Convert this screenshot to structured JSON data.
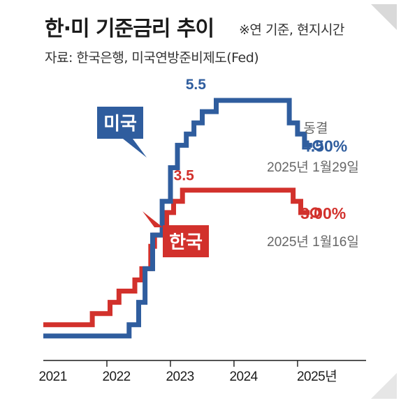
{
  "header": {
    "title": "한·미 기준금리 추이",
    "note": "※연 기준, 현지시간",
    "source": "자료: 한국은행, 미국연방준비제도(Fed)"
  },
  "colors": {
    "us": "#2f5d9e",
    "korea": "#d2312c",
    "axis": "#1b1b1b",
    "date": "#666666"
  },
  "chart_data": {
    "type": "line",
    "step": true,
    "x_unit": "year",
    "xlim": [
      2020.85,
      2025.95
    ],
    "ylim": [
      0,
      5.5
    ],
    "x_tick_labels": [
      {
        "x": 2021,
        "label": "2021"
      },
      {
        "x": 2022,
        "label": "2022"
      },
      {
        "x": 2023,
        "label": "2023"
      },
      {
        "x": 2024,
        "label": "2024"
      },
      {
        "x": 2025,
        "label": "2025년"
      }
    ],
    "series": [
      {
        "key": "us",
        "name": "미국",
        "peak_label": "5.5",
        "end_status": "동결",
        "end_value_label": "4.50%",
        "end_date": "2025년 1월29일",
        "points": [
          [
            2020.85,
            0.25
          ],
          [
            2022.2,
            0.5
          ],
          [
            2022.35,
            1.0
          ],
          [
            2022.45,
            1.75
          ],
          [
            2022.57,
            2.5
          ],
          [
            2022.72,
            3.25
          ],
          [
            2022.85,
            4.0
          ],
          [
            2022.96,
            4.5
          ],
          [
            2023.1,
            4.75
          ],
          [
            2023.22,
            5.0
          ],
          [
            2023.35,
            5.25
          ],
          [
            2023.57,
            5.5
          ],
          [
            2024.72,
            5.0
          ],
          [
            2024.85,
            4.75
          ],
          [
            2024.96,
            4.5
          ],
          [
            2025.08,
            4.5
          ]
        ]
      },
      {
        "key": "korea",
        "name": "한국",
        "peak_label": "3.5",
        "end_value_label": "3.00%",
        "end_date": "2025년 1월16일",
        "points": [
          [
            2020.85,
            0.5
          ],
          [
            2021.62,
            0.75
          ],
          [
            2021.9,
            1.0
          ],
          [
            2022.04,
            1.25
          ],
          [
            2022.29,
            1.5
          ],
          [
            2022.4,
            1.75
          ],
          [
            2022.54,
            2.25
          ],
          [
            2022.6,
            2.5
          ],
          [
            2022.79,
            3.0
          ],
          [
            2022.9,
            3.25
          ],
          [
            2023.04,
            3.5
          ],
          [
            2024.78,
            3.25
          ],
          [
            2024.9,
            3.0
          ],
          [
            2025.04,
            3.0
          ]
        ]
      }
    ]
  }
}
